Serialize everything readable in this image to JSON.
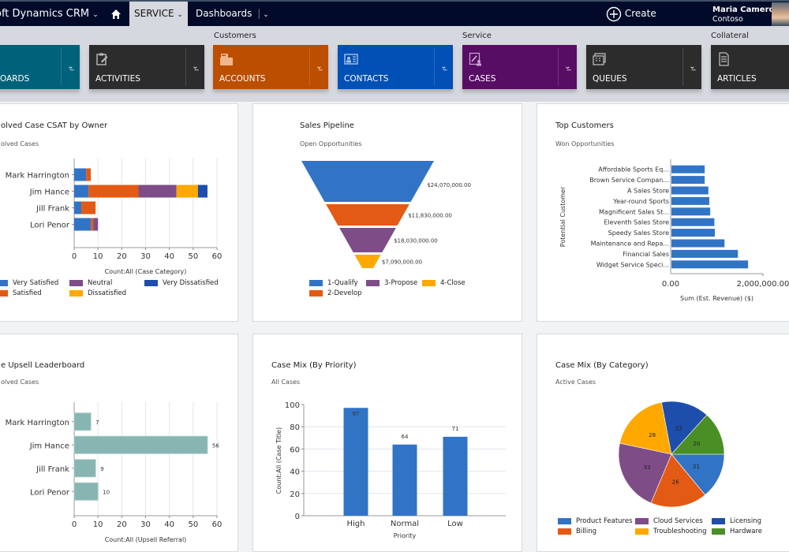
{
  "topbar": {
    "app_title": "oft Dynamics CRM",
    "app_chevron": "⌄",
    "home_icon": "home-icon",
    "service_tab": "SERVICE",
    "dashboards_tab": "Dashboards",
    "create_label": "Create",
    "user_name": "Maria Cameron",
    "user_org": "Contoso"
  },
  "nav": {
    "groups": [
      "Customers",
      "Service",
      "Collateral"
    ],
    "tiles": [
      {
        "label": "OARDS",
        "icon": "dashboard-icon",
        "color": "#00627a"
      },
      {
        "label": "ACTIVITIES",
        "icon": "clipboard-icon",
        "color": "#2c2c2c"
      },
      {
        "label": "ACCOUNTS",
        "icon": "folder-icon",
        "color": "#bc4e00"
      },
      {
        "label": "CONTACTS",
        "icon": "contact-card-icon",
        "color": "#0050b5"
      },
      {
        "label": "CASES",
        "icon": "case-wrench-icon",
        "color": "#580d65"
      },
      {
        "label": "QUEUES",
        "icon": "queue-icon",
        "color": "#2c2c2c"
      },
      {
        "label": "ARTICLES",
        "icon": "document-icon",
        "color": "#2c2c2c"
      }
    ]
  },
  "panels": {
    "csat": {
      "title": "olved Case CSAT by Owner",
      "subtitle": "olved Cases"
    },
    "pipeline": {
      "title": "Sales Pipeline",
      "subtitle": "Open Opportunities"
    },
    "customers": {
      "title": "Top Customers",
      "subtitle": "Won Opportunities"
    },
    "upsell": {
      "title": "e Upsell Leaderboard",
      "subtitle": "olved Cases"
    },
    "priority": {
      "title": "Case Mix (By Priority)",
      "subtitle": "All Cases"
    },
    "category": {
      "title": "Case Mix (By Category)",
      "subtitle": "Active Cases"
    }
  },
  "chart_data": [
    {
      "id": "csat",
      "type": "bar",
      "orientation": "horizontal",
      "stacked": true,
      "title": "Resolved Case CSAT by Owner",
      "categories": [
        "Mark Harrington",
        "Jim Hance",
        "Jill Frank",
        "Lori Penor"
      ],
      "series": [
        {
          "name": "Very Satisfied",
          "color": "#3174c6",
          "values": [
            5,
            6,
            3,
            7
          ]
        },
        {
          "name": "Satisfied",
          "color": "#e35a14",
          "values": [
            2,
            21,
            6,
            1
          ]
        },
        {
          "name": "Neutral",
          "color": "#7e4d87",
          "values": [
            0,
            16,
            0,
            2
          ]
        },
        {
          "name": "Dissatisfied",
          "color": "#fea800",
          "values": [
            0,
            9,
            0,
            0
          ]
        },
        {
          "name": "Very Dissatisfied",
          "color": "#1e4eab",
          "values": [
            0,
            4,
            0,
            0
          ]
        }
      ],
      "xlabel": "Count:All (Case Category)",
      "xlim": [
        0,
        60
      ],
      "xticks": [
        0,
        10,
        20,
        30,
        40,
        50,
        60
      ],
      "grid": true,
      "legend": "bottom"
    },
    {
      "id": "pipeline",
      "type": "funnel",
      "title": "Sales Pipeline",
      "categories": [
        "1-Qualify",
        "2-Develop",
        "3-Propose",
        "4-Close"
      ],
      "values": [
        24070000,
        11830000,
        18030000,
        7090000
      ],
      "labels": [
        "$24,070,000.00",
        "$11,830,000.00",
        "$18,030,000.00",
        "$7,090,000.00"
      ],
      "colors": [
        "#3174c6",
        "#e35a14",
        "#7e4d87",
        "#fea800"
      ],
      "legend_order": [
        "1-Qualify",
        "3-Propose",
        "4-Close",
        "2-Develop"
      ],
      "legend": "bottom"
    },
    {
      "id": "customers",
      "type": "bar",
      "orientation": "horizontal",
      "title": "Top Customers",
      "categories": [
        "Affordable Sports Eq...",
        "Brown Service Compan...",
        "A Sales Store",
        "Year-round Sports",
        "Magnificent Sales St...",
        "Eleventh Sales Store",
        "Speedy Sales Store",
        "Maintenance and Repa...",
        "Financial Sales",
        "Widget Service Speci..."
      ],
      "values": [
        720000,
        720000,
        800000,
        820000,
        840000,
        930000,
        940000,
        1150000,
        1440000,
        1660000
      ],
      "color": "#3174c6",
      "xlabel": "Sum (Est. Revenue) ($)",
      "ylabel": "Potential Customer",
      "xlim": [
        0,
        2000000
      ],
      "xtick_labels": [
        "0.00",
        "2,000,000.00"
      ]
    },
    {
      "id": "upsell",
      "type": "bar",
      "orientation": "horizontal",
      "title": "Case Upsell Leaderboard",
      "categories": [
        "Mark Harrington",
        "Jim Hance",
        "Jill Frank",
        "Lori Penor"
      ],
      "values": [
        7,
        56,
        9,
        10
      ],
      "color": "#87b5b2",
      "xlabel": "Count:All (Upsell Referral)",
      "xlim": [
        0,
        60
      ],
      "xticks": [
        0,
        10,
        20,
        30,
        40,
        50,
        60
      ],
      "grid": true
    },
    {
      "id": "priority",
      "type": "bar",
      "title": "Case Mix (By Priority)",
      "categories": [
        "High",
        "Normal",
        "Low"
      ],
      "values": [
        97,
        64,
        71
      ],
      "color": "#3174c6",
      "xlabel": "Priority",
      "ylabel": "Count:All (Case Title)",
      "ylim": [
        0,
        100
      ],
      "yticks": [
        0,
        20,
        40,
        60,
        80,
        100
      ],
      "grid": true
    },
    {
      "id": "category",
      "type": "pie",
      "title": "Case Mix (By Category)",
      "categories": [
        "Product Features",
        "Billing",
        "Cloud Services",
        "Troubleshooting",
        "Licensing",
        "Hardware"
      ],
      "values": [
        21,
        26,
        33,
        28,
        22,
        20
      ],
      "colors": [
        "#3174c6",
        "#e35a14",
        "#7e4d87",
        "#fea800",
        "#1e4eab",
        "#4a8f26"
      ],
      "legend_order": [
        "Product Features",
        "Cloud Services",
        "Licensing",
        "Billing",
        "Troubleshooting",
        "Hardware"
      ],
      "legend": "bottom"
    }
  ]
}
